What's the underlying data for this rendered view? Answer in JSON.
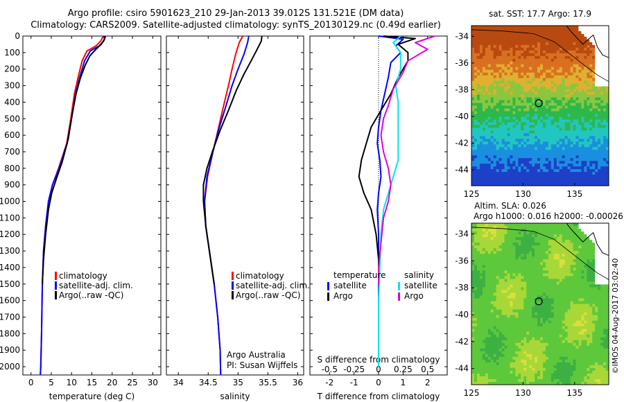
{
  "header": {
    "title_line1": "Argo profile: csiro 5901623_210 29-Jan-2013 39.012S 131.521E (DM data)",
    "title_line2": "Climatology: CARS2009. Satellite-adjusted climatology: synTS_20130129.nc (0.49d earlier)"
  },
  "colors": {
    "climatology": "#ff0000",
    "satellite": "#0000ff",
    "argo": "#000000",
    "sat_salinity": "#00e5ee",
    "argo_salinity": "#dd00dd"
  },
  "chart_data": [
    {
      "type": "line",
      "panel": "temperature",
      "xlabel": "temperature (deg C)",
      "ylabel": "",
      "xlim": [
        -2,
        32
      ],
      "ylim": [
        2050,
        0
      ],
      "xticks": [
        0,
        5,
        10,
        15,
        20,
        25,
        30
      ],
      "yticks": [
        0,
        100,
        200,
        300,
        400,
        500,
        600,
        700,
        800,
        900,
        1000,
        1100,
        1200,
        1300,
        1400,
        1500,
        1600,
        1700,
        1800,
        1900,
        2000
      ],
      "legend": [
        "climatology",
        "satellite-adj. clim.",
        "Argo(..raw -QC)"
      ],
      "series": [
        {
          "name": "climatology",
          "color": "#ff0000",
          "points": [
            [
              17.8,
              0
            ],
            [
              17.2,
              30
            ],
            [
              16.0,
              60
            ],
            [
              13.8,
              90
            ],
            [
              12.6,
              150
            ],
            [
              11.6,
              250
            ],
            [
              10.7,
              350
            ],
            [
              9.8,
              500
            ],
            [
              8.8,
              650
            ],
            [
              6.8,
              800
            ],
            [
              5.3,
              900
            ],
            [
              4.3,
              1000
            ],
            [
              3.6,
              1150
            ],
            [
              3.1,
              1300
            ],
            [
              2.8,
              1500
            ],
            [
              2.6,
              1800
            ],
            [
              2.4,
              2000
            ],
            [
              2.3,
              2050
            ]
          ]
        },
        {
          "name": "satellite-adj. clim.",
          "color": "#0000ff",
          "points": [
            [
              18.4,
              0
            ],
            [
              17.9,
              30
            ],
            [
              16.8,
              60
            ],
            [
              14.6,
              90
            ],
            [
              13.2,
              150
            ],
            [
              12.0,
              250
            ],
            [
              11.0,
              350
            ],
            [
              10.0,
              500
            ],
            [
              8.9,
              650
            ],
            [
              6.9,
              800
            ],
            [
              5.3,
              900
            ],
            [
              4.3,
              1000
            ],
            [
              3.6,
              1150
            ],
            [
              3.1,
              1300
            ],
            [
              2.8,
              1500
            ],
            [
              2.6,
              1800
            ],
            [
              2.4,
              2000
            ],
            [
              2.3,
              2050
            ]
          ]
        },
        {
          "name": "Argo(..raw -QC)",
          "color": "#000000",
          "points": [
            [
              18.0,
              0
            ],
            [
              18.1,
              20
            ],
            [
              17.3,
              50
            ],
            [
              16.0,
              80
            ],
            [
              14.5,
              120
            ],
            [
              13.3,
              180
            ],
            [
              12.1,
              260
            ],
            [
              11.1,
              350
            ],
            [
              10.1,
              480
            ],
            [
              9.2,
              620
            ],
            [
              7.7,
              760
            ],
            [
              6.3,
              860
            ],
            [
              5.1,
              950
            ],
            [
              4.3,
              1050
            ],
            [
              3.6,
              1200
            ],
            [
              3.1,
              1350
            ],
            [
              2.8,
              1500
            ]
          ]
        }
      ]
    },
    {
      "type": "line",
      "panel": "salinity",
      "xlabel": "salinity",
      "ylabel": "",
      "xlim": [
        33.8,
        36.1
      ],
      "ylim": [
        2050,
        0
      ],
      "xticks": [
        34,
        34.5,
        35,
        35.5,
        36
      ],
      "legend": [
        "climatology",
        "satellite-adj. clim.",
        "Argo(..raw -QC)"
      ],
      "annotations": [
        "Argo Australia",
        "PI: Susan Wijffels"
      ],
      "series": [
        {
          "name": "climatology",
          "color": "#ff0000",
          "points": [
            [
              35.08,
              0
            ],
            [
              35.02,
              40
            ],
            [
              34.96,
              110
            ],
            [
              34.9,
              200
            ],
            [
              34.84,
              300
            ],
            [
              34.76,
              420
            ],
            [
              34.67,
              560
            ],
            [
              34.58,
              700
            ],
            [
              34.49,
              850
            ],
            [
              34.44,
              1000
            ],
            [
              34.46,
              1150
            ],
            [
              34.52,
              1300
            ],
            [
              34.6,
              1500
            ],
            [
              34.66,
              1700
            ],
            [
              34.7,
              1900
            ],
            [
              34.71,
              2050
            ]
          ]
        },
        {
          "name": "satellite-adj. clim.",
          "color": "#0000ff",
          "points": [
            [
              35.18,
              0
            ],
            [
              35.16,
              40
            ],
            [
              35.1,
              110
            ],
            [
              35.0,
              200
            ],
            [
              34.9,
              300
            ],
            [
              34.8,
              420
            ],
            [
              34.68,
              560
            ],
            [
              34.58,
              700
            ],
            [
              34.48,
              850
            ],
            [
              34.44,
              1000
            ],
            [
              34.46,
              1150
            ],
            [
              34.52,
              1300
            ],
            [
              34.6,
              1500
            ],
            [
              34.66,
              1700
            ],
            [
              34.7,
              1900
            ],
            [
              34.71,
              2050
            ]
          ]
        },
        {
          "name": "Argo(..raw -QC)",
          "color": "#000000",
          "points": [
            [
              35.4,
              0
            ],
            [
              35.39,
              30
            ],
            [
              35.32,
              80
            ],
            [
              35.22,
              150
            ],
            [
              35.1,
              230
            ],
            [
              34.97,
              330
            ],
            [
              34.84,
              450
            ],
            [
              34.7,
              570
            ],
            [
              34.58,
              690
            ],
            [
              34.48,
              800
            ],
            [
              34.42,
              900
            ],
            [
              34.42,
              1000
            ],
            [
              34.46,
              1150
            ],
            [
              34.52,
              1300
            ],
            [
              34.6,
              1500
            ]
          ]
        }
      ]
    },
    {
      "type": "line",
      "panel": "difference",
      "xlabel": "T difference from climatology",
      "ylabel": "",
      "title": "S difference from climatology",
      "xlim": [
        -2.8,
        2.8
      ],
      "ylim": [
        2050,
        0
      ],
      "xticks": [
        -2,
        -1,
        0,
        1,
        2
      ],
      "top_tick_labels": [
        "-0.5",
        "-0.25",
        "0",
        "0.25",
        "0.5"
      ],
      "legend_headers": [
        "temperature",
        "salinity"
      ],
      "legend": [
        "satellite",
        "Argo",
        "satellite",
        "Argo"
      ],
      "series": [
        {
          "name": "satellite",
          "group": "temperature",
          "color": "#0000ff",
          "points": [
            [
              0.0,
              0
            ],
            [
              1.0,
              20
            ],
            [
              0.7,
              60
            ],
            [
              0.9,
              100
            ],
            [
              0.5,
              160
            ],
            [
              0.4,
              250
            ],
            [
              0.25,
              350
            ],
            [
              0.1,
              450
            ],
            [
              0.0,
              550
            ],
            [
              -0.05,
              650
            ],
            [
              0.05,
              750
            ],
            [
              0.1,
              850
            ],
            [
              0.0,
              950
            ],
            [
              -0.05,
              1050
            ],
            [
              0.0,
              1200
            ],
            [
              0.0,
              1400
            ],
            [
              0.0,
              1600
            ],
            [
              0.0,
              1800
            ],
            [
              0.0,
              2000
            ]
          ]
        },
        {
          "name": "Argo",
          "group": "temperature",
          "color": "#000000",
          "points": [
            [
              0.2,
              0
            ],
            [
              1.5,
              15
            ],
            [
              0.8,
              50
            ],
            [
              1.2,
              100
            ],
            [
              1.2,
              150
            ],
            [
              0.8,
              250
            ],
            [
              0.5,
              350
            ],
            [
              0.1,
              450
            ],
            [
              -0.3,
              550
            ],
            [
              -0.5,
              650
            ],
            [
              -0.7,
              750
            ],
            [
              -0.8,
              850
            ],
            [
              -0.6,
              950
            ],
            [
              -0.3,
              1050
            ],
            [
              -0.1,
              1200
            ],
            [
              0.0,
              1350
            ],
            [
              0.0,
              1500
            ]
          ]
        },
        {
          "name": "satellite",
          "group": "salinity",
          "color": "#00e5ee",
          "points": [
            [
              0.9,
              0
            ],
            [
              0.6,
              40
            ],
            [
              0.9,
              100
            ],
            [
              0.9,
              200
            ],
            [
              0.7,
              300
            ],
            [
              0.8,
              400
            ],
            [
              0.8,
              550
            ],
            [
              0.8,
              650
            ],
            [
              0.8,
              750
            ],
            [
              0.6,
              850
            ],
            [
              0.4,
              950
            ],
            [
              0.2,
              1050
            ],
            [
              0.1,
              1200
            ],
            [
              0.05,
              1400
            ],
            [
              0.0,
              1600
            ],
            [
              0.0,
              1800
            ],
            [
              0.0,
              2000
            ]
          ]
        },
        {
          "name": "Argo",
          "group": "salinity",
          "color": "#dd00dd",
          "points": [
            [
              2.3,
              0
            ],
            [
              1.5,
              40
            ],
            [
              2.0,
              80
            ],
            [
              1.2,
              150
            ],
            [
              1.0,
              220
            ],
            [
              0.6,
              320
            ],
            [
              0.4,
              420
            ],
            [
              0.2,
              500
            ],
            [
              0.1,
              600
            ],
            [
              0.2,
              700
            ],
            [
              0.4,
              800
            ],
            [
              0.5,
              900
            ],
            [
              0.4,
              1000
            ],
            [
              0.2,
              1100
            ],
            [
              0.1,
              1250
            ],
            [
              0.0,
              1400
            ],
            [
              0.0,
              1500
            ]
          ]
        }
      ]
    },
    {
      "type": "heatmap",
      "panel": "sst-map",
      "title": "sat. SST: 17.7 Argo: 17.9",
      "xlim": [
        125,
        138.3
      ],
      "ylim": [
        -45.2,
        -33.2
      ],
      "xticks": [
        125,
        130,
        135
      ],
      "yticks": [
        -34,
        -36,
        -38,
        -40,
        -42,
        -44
      ],
      "marker": {
        "lon": 131.521,
        "lat": -39.012
      }
    },
    {
      "type": "heatmap",
      "panel": "sla-map",
      "title": "Altim. SLA: 0.026",
      "subtitle": "Argo h1000: 0.016 h2000: -0.00026",
      "xlim": [
        125,
        138.3
      ],
      "ylim": [
        -45.2,
        -33.2
      ],
      "xticks": [
        125,
        130,
        135
      ],
      "yticks": [
        -34,
        -36,
        -38,
        -40,
        -42,
        -44
      ],
      "marker": {
        "lon": 131.521,
        "lat": -39.012
      }
    }
  ],
  "footer": {
    "stamp": "©IMOS 04-Aug-2017 03:02:40"
  }
}
